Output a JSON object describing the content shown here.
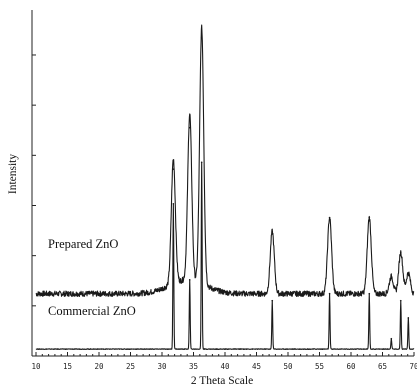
{
  "chart_data": {
    "type": "line",
    "title": "",
    "xlabel": "2 Theta Scale",
    "ylabel": "Intensity",
    "xlim": [
      10,
      70
    ],
    "ylim": [
      0,
      100
    ],
    "x_ticks": [
      "10",
      "15",
      "20",
      "25",
      "30",
      "35",
      "40",
      "45",
      "50",
      "55",
      "60",
      "65",
      "70"
    ],
    "grid": false,
    "legend": "none",
    "series": [
      {
        "name": "Prepared ZnO",
        "baseline": 18,
        "peaks": [
          {
            "x": 31.8,
            "y": 54
          },
          {
            "x": 34.4,
            "y": 66
          },
          {
            "x": 36.3,
            "y": 92
          },
          {
            "x": 47.5,
            "y": 36
          },
          {
            "x": 56.6,
            "y": 40
          },
          {
            "x": 62.9,
            "y": 40
          },
          {
            "x": 66.4,
            "y": 23
          },
          {
            "x": 67.9,
            "y": 30
          },
          {
            "x": 69.1,
            "y": 24
          }
        ]
      },
      {
        "name": "Commercial ZnO",
        "baseline": 2,
        "peaks": [
          {
            "x": 31.8,
            "y": 44
          },
          {
            "x": 34.4,
            "y": 22
          },
          {
            "x": 36.3,
            "y": 56
          },
          {
            "x": 47.5,
            "y": 16
          },
          {
            "x": 56.6,
            "y": 18
          },
          {
            "x": 62.9,
            "y": 18
          },
          {
            "x": 66.4,
            "y": 5
          },
          {
            "x": 67.9,
            "y": 16
          },
          {
            "x": 69.1,
            "y": 11
          }
        ]
      }
    ]
  }
}
